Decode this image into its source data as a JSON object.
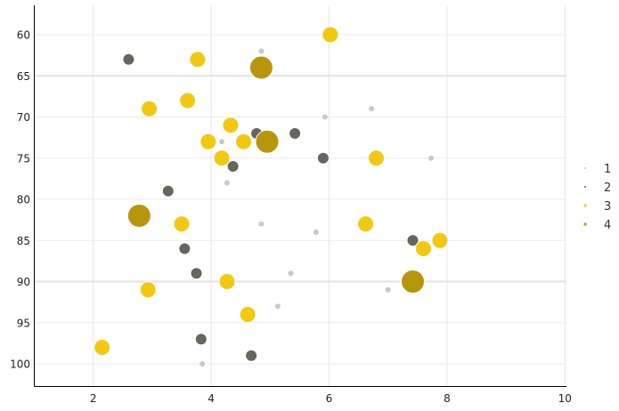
{
  "chart_data": {
    "type": "scatter",
    "title": "",
    "xlabel": "",
    "ylabel": "",
    "xlim": [
      1,
      10
    ],
    "ylim": [
      103,
      57
    ],
    "y_inverted": true,
    "grid": true,
    "x_ticks": [
      2,
      4,
      6,
      8,
      10
    ],
    "y_ticks": [
      60,
      65,
      70,
      75,
      80,
      85,
      90,
      95,
      100
    ],
    "legend_position": "right",
    "series": [
      {
        "name": "1",
        "color": "#C8C8C8",
        "marker_radius": 3,
        "points": [
          [
            4.85,
            62
          ],
          [
            6.72,
            69
          ],
          [
            5.93,
            70
          ],
          [
            4.18,
            73
          ],
          [
            7.73,
            75
          ],
          [
            4.27,
            78
          ],
          [
            4.85,
            83
          ],
          [
            5.78,
            84
          ],
          [
            5.35,
            89
          ],
          [
            7.0,
            91
          ],
          [
            5.13,
            93
          ],
          [
            3.85,
            100
          ]
        ]
      },
      {
        "name": "2",
        "color": "#66665F",
        "marker_radius": 6.5,
        "points": [
          [
            2.6,
            63
          ],
          [
            4.77,
            72
          ],
          [
            5.42,
            72
          ],
          [
            5.9,
            75
          ],
          [
            4.37,
            76
          ],
          [
            3.27,
            79
          ],
          [
            7.42,
            85
          ],
          [
            3.55,
            86
          ],
          [
            3.75,
            89
          ],
          [
            3.83,
            97
          ],
          [
            4.68,
            99
          ]
        ]
      },
      {
        "name": "3",
        "color": "#F2C811",
        "marker_radius": 9,
        "points": [
          [
            6.02,
            60
          ],
          [
            3.77,
            63
          ],
          [
            3.6,
            68
          ],
          [
            2.95,
            69
          ],
          [
            4.33,
            71
          ],
          [
            3.95,
            73
          ],
          [
            4.55,
            73
          ],
          [
            4.18,
            75
          ],
          [
            6.8,
            75
          ],
          [
            3.5,
            83
          ],
          [
            6.62,
            83
          ],
          [
            7.88,
            85
          ],
          [
            7.6,
            86
          ],
          [
            4.27,
            90
          ],
          [
            2.93,
            91
          ],
          [
            4.62,
            94
          ],
          [
            2.15,
            98
          ]
        ]
      },
      {
        "name": "4",
        "color": "#B8960C",
        "marker_radius": 13,
        "points": [
          [
            4.85,
            64
          ],
          [
            4.95,
            73
          ],
          [
            2.78,
            82
          ],
          [
            7.42,
            90
          ]
        ]
      }
    ]
  }
}
